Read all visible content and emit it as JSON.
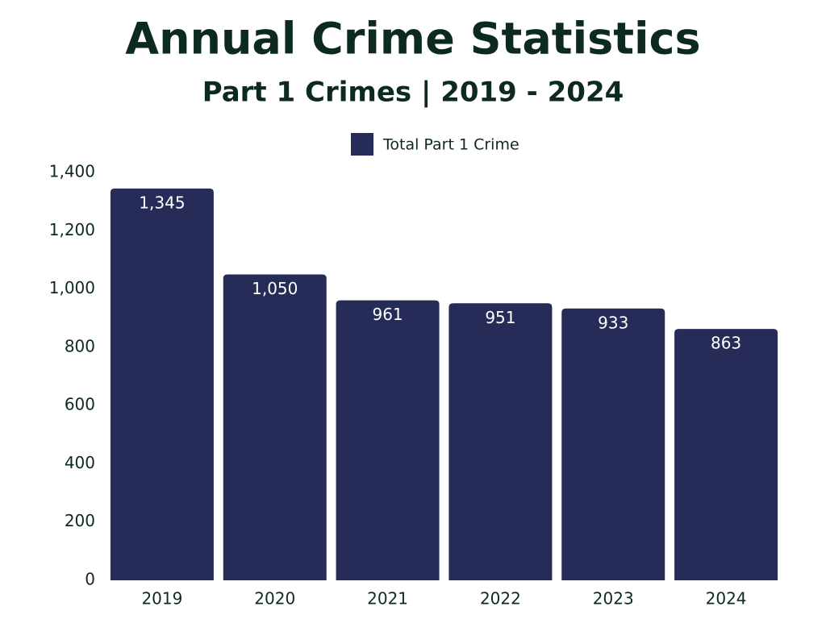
{
  "chart_data": {
    "type": "bar",
    "title": "Annual Crime Statistics",
    "subtitle": "Part 1 Crimes | 2019 - 2024",
    "categories": [
      "2019",
      "2020",
      "2021",
      "2022",
      "2023",
      "2024"
    ],
    "series": [
      {
        "name": "Total Part 1 Crime",
        "color": "#262c57",
        "values": [
          1345,
          1050,
          961,
          951,
          933,
          863
        ],
        "value_labels": [
          "1,345",
          "1,050",
          "961",
          "951",
          "933",
          "863"
        ]
      }
    ],
    "ylim": [
      0,
      1400
    ],
    "yticks": [
      0,
      200,
      400,
      600,
      800,
      {
        "value": 1000,
        "label": "1,000"
      },
      {
        "value": 1200,
        "label": "1,200"
      },
      {
        "value": 1400,
        "label": "1,400"
      }
    ],
    "grid": false,
    "legend": "top"
  }
}
